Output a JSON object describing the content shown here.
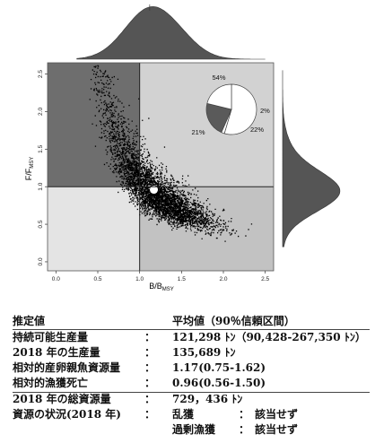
{
  "chart_data": {
    "type": "scatter",
    "xlabel": "B/B_MSY",
    "ylabel": "F/F_MSY",
    "xlim": [
      -0.1,
      2.6
    ],
    "ylim": [
      -0.12,
      2.65
    ],
    "x_ticks": [
      "0.0",
      "0.5",
      "1.0",
      "1.5",
      "2.0",
      "2.5"
    ],
    "y_ticks": [
      "0.0",
      "0.5",
      "1.0",
      "1.5",
      "2.0",
      "2.5"
    ],
    "reference_lines": {
      "x": 1.0,
      "y": 1.0
    },
    "mean_point": {
      "x": 1.17,
      "y": 0.96
    },
    "cloud": {
      "description_free": true,
      "n_points": 5000,
      "b_center": 1.17,
      "f_center": 0.96
    },
    "quadrants": {
      "upper_left": "#6e6e6e",
      "upper_right": "#d2d2d2",
      "lower_left": "#e4e4e4",
      "lower_right": "#c2c2c2"
    },
    "pie": {
      "slices": [
        {
          "label": "54%",
          "value": 54,
          "color": "#ffffff"
        },
        {
          "label": "2%",
          "value": 2,
          "color": "#ffffff"
        },
        {
          "label": "22%",
          "value": 22,
          "color": "#5a5a5a"
        },
        {
          "label": "21%",
          "value": 21,
          "color": "#ffffff"
        }
      ]
    }
  },
  "table": {
    "header": {
      "label": "推定値",
      "value": "平均値（90％信頼区間）"
    },
    "rows": [
      {
        "label": "持続可能生産量",
        "colon": "：",
        "value": "121,298 ﾄﾝ（90,428-267,350 ﾄﾝ）"
      },
      {
        "label": "2018 年の生産量",
        "colon": "：",
        "value": "135,689 ﾄﾝ"
      },
      {
        "label": "相対的産卵親魚資源量",
        "colon": "：",
        "value": "1.17(0.75-1.62)"
      },
      {
        "label": "相対的漁獲死亡",
        "colon": "：",
        "value": "0.96(0.56-1.50)"
      },
      {
        "label": "2018 年の総資源量",
        "colon": "：",
        "value": "729，436 ﾄﾝ"
      }
    ],
    "status": {
      "label": "資源の状況(2018 年)",
      "colon": "：",
      "items": [
        {
          "name": "乱獲",
          "colon": "：",
          "value": "該当せず"
        },
        {
          "name": "過剰漁獲",
          "colon": "：",
          "value": "該当せず"
        }
      ]
    }
  }
}
